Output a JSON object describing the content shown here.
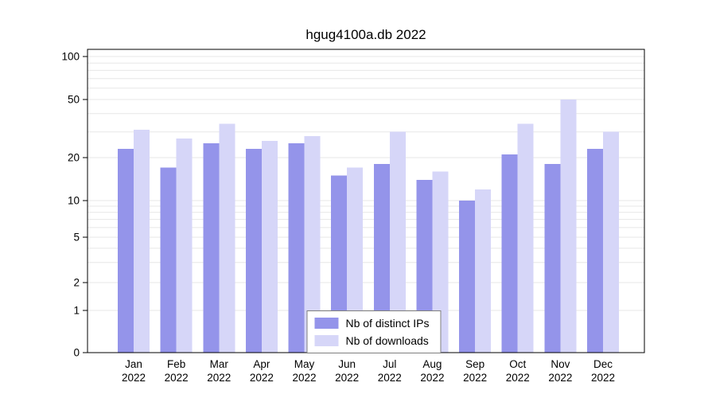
{
  "chart_data": {
    "type": "bar",
    "title": "hgug4100a.db 2022",
    "categories": [
      "Jan",
      "Feb",
      "Mar",
      "Apr",
      "May",
      "Jun",
      "Jul",
      "Aug",
      "Sep",
      "Oct",
      "Nov",
      "Dec"
    ],
    "x_sublabel": "2022",
    "series": [
      {
        "name": "Nb of distinct IPs",
        "color": "#9494ea",
        "values": [
          23,
          17,
          25,
          23,
          25,
          15,
          18,
          14,
          10,
          21,
          18,
          23
        ]
      },
      {
        "name": "Nb of downloads",
        "color": "#d6d6f8",
        "values": [
          31,
          27,
          34,
          26,
          28,
          17,
          30,
          16,
          12,
          34,
          50,
          30
        ]
      }
    ],
    "y_ticks": [
      0,
      1,
      2,
      5,
      10,
      20,
      50,
      100
    ],
    "ylim": [
      0,
      100
    ],
    "scale": "log-like",
    "grid": "horizontal minor gridlines at 1-10, 20-100",
    "grid_color": "#e7e7e7",
    "frame_color": "#000000",
    "legend_position": "bottom-center",
    "xlabel": "",
    "ylabel": ""
  }
}
